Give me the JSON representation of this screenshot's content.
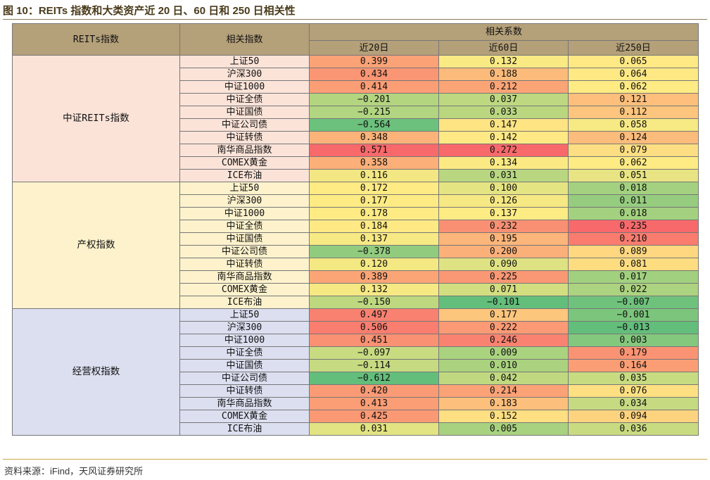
{
  "title": "图 10：REITs 指数和大类资产近 20 日、60 日和 250 日相关性",
  "source": "资料来源：iFind，天风证券研究所",
  "colors": {
    "header_bg": "#b4a079",
    "group_bg": [
      "#fbe3d8",
      "#fdf2cc",
      "#dcdff0"
    ],
    "scale_negative": "#63be7b",
    "scale_mid": "#ffeb84",
    "scale_positive": "#f8696b"
  },
  "chart_data": {
    "type": "table",
    "headers": {
      "reits": "REITs指数",
      "index": "相关指数",
      "coef": "相关系数",
      "periods": [
        "近20日",
        "近60日",
        "近250日"
      ]
    },
    "groups": [
      {
        "name": "中证REITs指数",
        "rows": [
          {
            "index": "上证50",
            "values": [
              0.399,
              0.132,
              0.065
            ]
          },
          {
            "index": "沪深300",
            "values": [
              0.434,
              0.188,
              0.064
            ]
          },
          {
            "index": "中证1000",
            "values": [
              0.414,
              0.212,
              0.062
            ]
          },
          {
            "index": "中证全债",
            "values": [
              -0.201,
              0.037,
              0.121
            ]
          },
          {
            "index": "中证国债",
            "values": [
              -0.215,
              0.033,
              0.112
            ]
          },
          {
            "index": "中证公司债",
            "values": [
              -0.564,
              0.147,
              0.058
            ]
          },
          {
            "index": "中证转债",
            "values": [
              0.348,
              0.142,
              0.124
            ]
          },
          {
            "index": "南华商品指数",
            "values": [
              0.571,
              0.272,
              0.079
            ]
          },
          {
            "index": "COMEX黄金",
            "values": [
              0.358,
              0.134,
              0.062
            ]
          },
          {
            "index": "ICE布油",
            "values": [
              0.116,
              0.031,
              0.051
            ]
          }
        ]
      },
      {
        "name": "产权指数",
        "rows": [
          {
            "index": "上证50",
            "values": [
              0.172,
              0.1,
              0.018
            ]
          },
          {
            "index": "沪深300",
            "values": [
              0.177,
              0.126,
              0.011
            ]
          },
          {
            "index": "中证1000",
            "values": [
              0.178,
              0.137,
              0.018
            ]
          },
          {
            "index": "中证全债",
            "values": [
              0.184,
              0.232,
              0.235
            ]
          },
          {
            "index": "中证国债",
            "values": [
              0.137,
              0.195,
              0.21
            ]
          },
          {
            "index": "中证公司债",
            "values": [
              -0.378,
              0.2,
              0.089
            ]
          },
          {
            "index": "中证转债",
            "values": [
              0.12,
              0.09,
              0.081
            ]
          },
          {
            "index": "南华商品指数",
            "values": [
              0.389,
              0.225,
              0.017
            ]
          },
          {
            "index": "COMEX黄金",
            "values": [
              0.132,
              0.071,
              0.022
            ]
          },
          {
            "index": "ICE布油",
            "values": [
              -0.15,
              -0.101,
              -0.007
            ]
          }
        ]
      },
      {
        "name": "经营权指数",
        "rows": [
          {
            "index": "上证50",
            "values": [
              0.497,
              0.177,
              -0.001
            ]
          },
          {
            "index": "沪深300",
            "values": [
              0.506,
              0.222,
              -0.013
            ]
          },
          {
            "index": "中证1000",
            "values": [
              0.451,
              0.246,
              0.003
            ]
          },
          {
            "index": "中证全债",
            "values": [
              -0.097,
              0.009,
              0.179
            ]
          },
          {
            "index": "中证国债",
            "values": [
              -0.114,
              0.01,
              0.164
            ]
          },
          {
            "index": "中证公司债",
            "values": [
              -0.612,
              0.042,
              0.035
            ]
          },
          {
            "index": "中证转债",
            "values": [
              0.42,
              0.214,
              0.076
            ]
          },
          {
            "index": "南华商品指数",
            "values": [
              0.413,
              0.183,
              0.034
            ]
          },
          {
            "index": "COMEX黄金",
            "values": [
              0.425,
              0.152,
              0.094
            ]
          },
          {
            "index": "ICE布油",
            "values": [
              0.031,
              0.005,
              0.036
            ]
          }
        ]
      }
    ]
  }
}
